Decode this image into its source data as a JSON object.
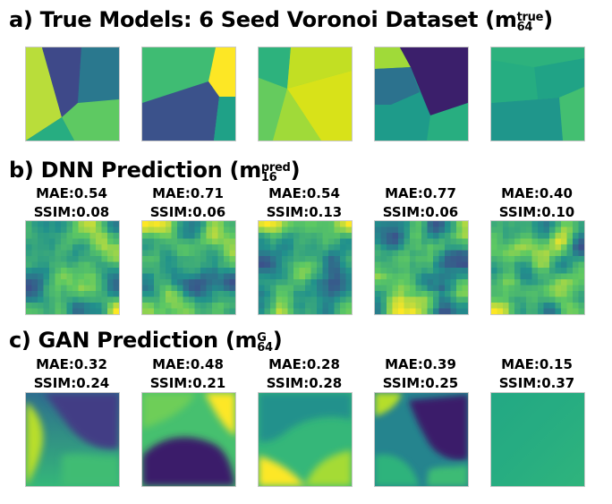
{
  "rows": [
    {
      "title_main": "a) True Models: 6 Seed Voronoi Dataset",
      "symbol_base": "m",
      "symbol_sup": "true",
      "symbol_sub": "64"
    },
    {
      "title_main": "b) DNN Prediction",
      "symbol_base": "m",
      "symbol_sup": "pred",
      "symbol_sub": "16",
      "metrics": [
        {
          "mae": "MAE:0.54",
          "ssim": "SSIM:0.08"
        },
        {
          "mae": "MAE:0.71",
          "ssim": "SSIM:0.06"
        },
        {
          "mae": "MAE:0.54",
          "ssim": "SSIM:0.13"
        },
        {
          "mae": "MAE:0.77",
          "ssim": "SSIM:0.06"
        },
        {
          "mae": "MAE:0.40",
          "ssim": "SSIM:0.10"
        }
      ]
    },
    {
      "title_main": "c) GAN Prediction",
      "symbol_base": "m",
      "symbol_sup": "G",
      "symbol_sub": "64",
      "metrics": [
        {
          "mae": "MAE:0.32",
          "ssim": "SSIM:0.24"
        },
        {
          "mae": "MAE:0.48",
          "ssim": "SSIM:0.21"
        },
        {
          "mae": "MAE:0.28",
          "ssim": "SSIM:0.28"
        },
        {
          "mae": "MAE:0.39",
          "ssim": "SSIM:0.25"
        },
        {
          "mae": "MAE:0.15",
          "ssim": "SSIM:0.37"
        }
      ]
    }
  ],
  "colormap": {
    "name": "viridis",
    "dark": "#3b1f6b",
    "mid": "#21918c",
    "bright": "#fde725"
  }
}
